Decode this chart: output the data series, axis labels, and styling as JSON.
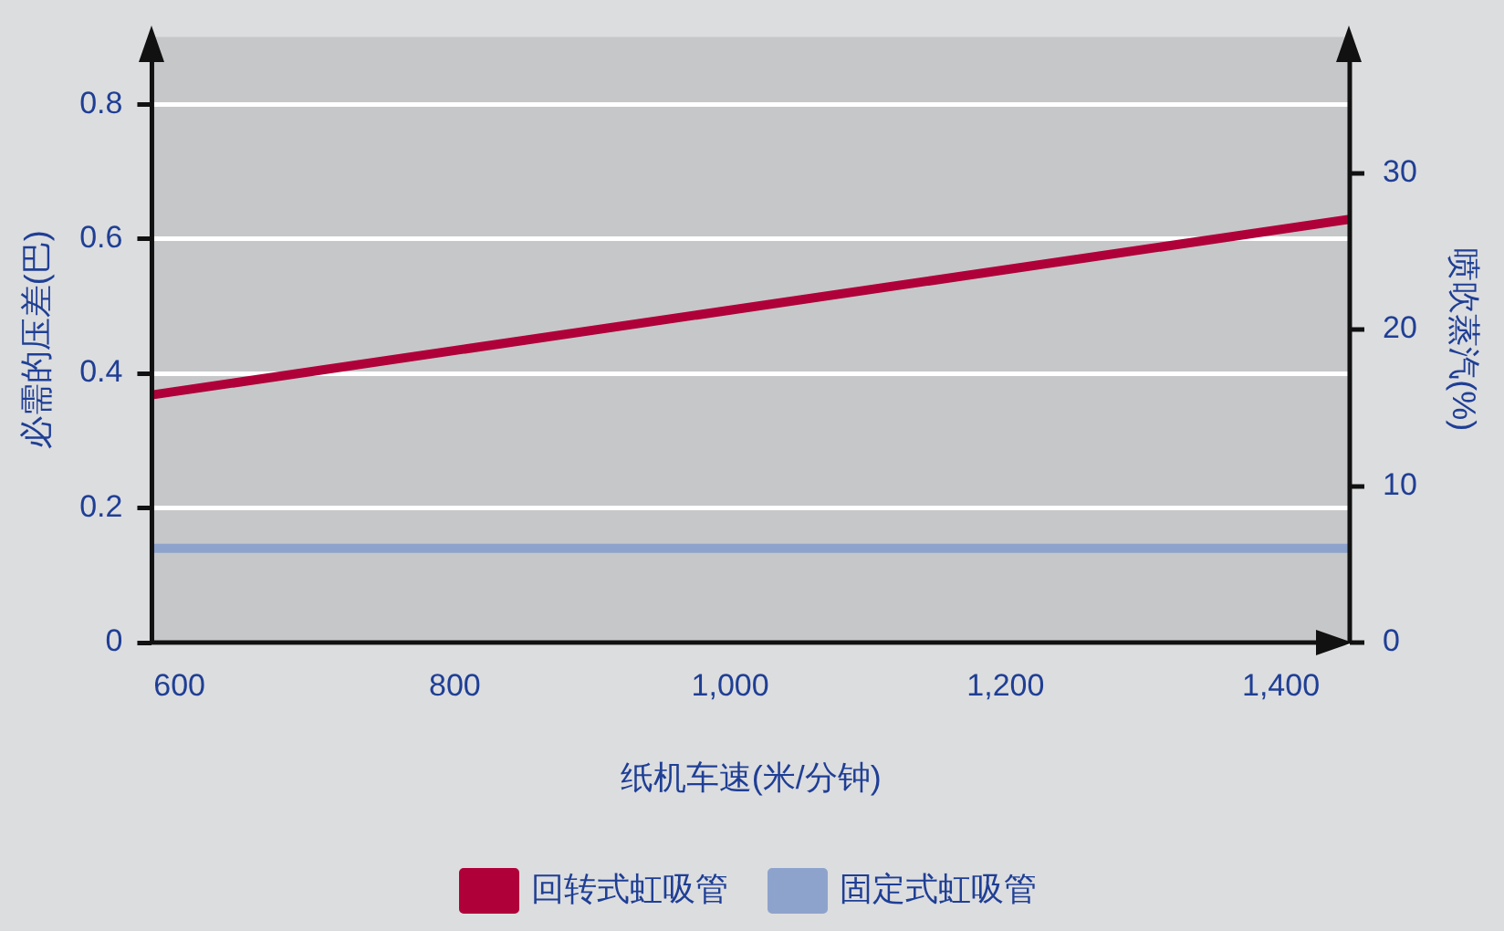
{
  "chart_data": {
    "type": "line",
    "xlabel": "纸机车速(米/分钟)",
    "ylabel": "必需的压差(巴)",
    "y2label": "喷吹蒸汽(%)",
    "x": [
      580,
      1450
    ],
    "xlim": [
      580,
      1450
    ],
    "xticks": [
      {
        "value": 600,
        "label": "600"
      },
      {
        "value": 800,
        "label": "800"
      },
      {
        "value": 1000,
        "label": "1,000"
      },
      {
        "value": 1200,
        "label": "1,200"
      },
      {
        "value": 1400,
        "label": "1,400"
      }
    ],
    "ylim": [
      0,
      0.9
    ],
    "yticks": [
      0,
      0.2,
      0.4,
      0.6,
      0.8
    ],
    "y2lim": [
      0,
      38.7
    ],
    "y2ticks": [
      0,
      10,
      20,
      30
    ],
    "series": [
      {
        "name": "回转式虹吸管",
        "color": "#b0003a",
        "values": [
          0.368,
          0.629
        ]
      },
      {
        "name": "固定式虹吸管",
        "color": "#8ea3cc",
        "values": [
          0.14,
          0.14
        ]
      }
    ],
    "grid": "y",
    "legend": "bottom",
    "marker": "none",
    "line_style": "solid"
  }
}
